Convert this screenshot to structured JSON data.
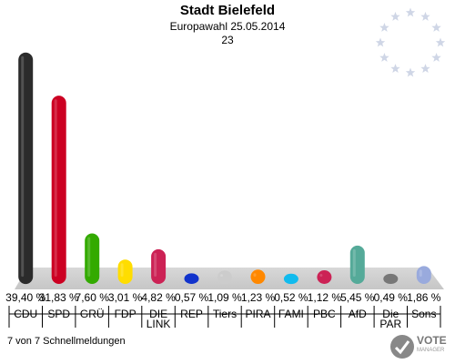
{
  "header": {
    "title": "Stadt Bielefeld",
    "subtitle": "Europawahl 25.05.2014",
    "subsubtitle": "23"
  },
  "footer": {
    "text": "7 von 7 Schnellmeldungen"
  },
  "logo": {
    "text": "VOTE",
    "sub": "MANAGER"
  },
  "chart_data": {
    "type": "bar",
    "categories": [
      "CDU",
      "SPD",
      "GRÜ",
      "FDP",
      "DIE LINK",
      "REP",
      "Tiers",
      "PIRA",
      "FAMI",
      "PBC",
      "AfD",
      "Die PAR",
      "Sons"
    ],
    "values": [
      39.4,
      31.83,
      7.6,
      3.01,
      4.82,
      0.57,
      1.09,
      1.23,
      0.52,
      1.12,
      5.45,
      0.49,
      1.86
    ],
    "value_labels": [
      "39,40 %",
      "31,83 %",
      "7,60 %",
      "3,01 %",
      "4,82 %",
      "0,57 %",
      "1,09 %",
      "1,23 %",
      "0,52 %",
      "1,12 %",
      "5,45 %",
      "0,49 %",
      "1,86 %"
    ],
    "tick_labels": [
      [
        "CDU"
      ],
      [
        "SPD"
      ],
      [
        "GRÜ"
      ],
      [
        "FDP"
      ],
      [
        "DIE",
        "LINK"
      ],
      [
        "REP"
      ],
      [
        "Tiers"
      ],
      [
        "PIRA"
      ],
      [
        "FAMI"
      ],
      [
        "PBC"
      ],
      [
        "AfD"
      ],
      [
        "Die",
        "PAR"
      ],
      [
        "Sons"
      ]
    ],
    "colors": [
      "#2b2b2b",
      "#cc0022",
      "#33aa00",
      "#ffdd00",
      "#cc2255",
      "#1133cc",
      "#cccccc",
      "#ff8800",
      "#11bbee",
      "#cc2255",
      "#55aa99",
      "#777777",
      "#99aadd"
    ],
    "ylim": [
      0,
      40
    ],
    "grid": false,
    "legend": "none"
  }
}
